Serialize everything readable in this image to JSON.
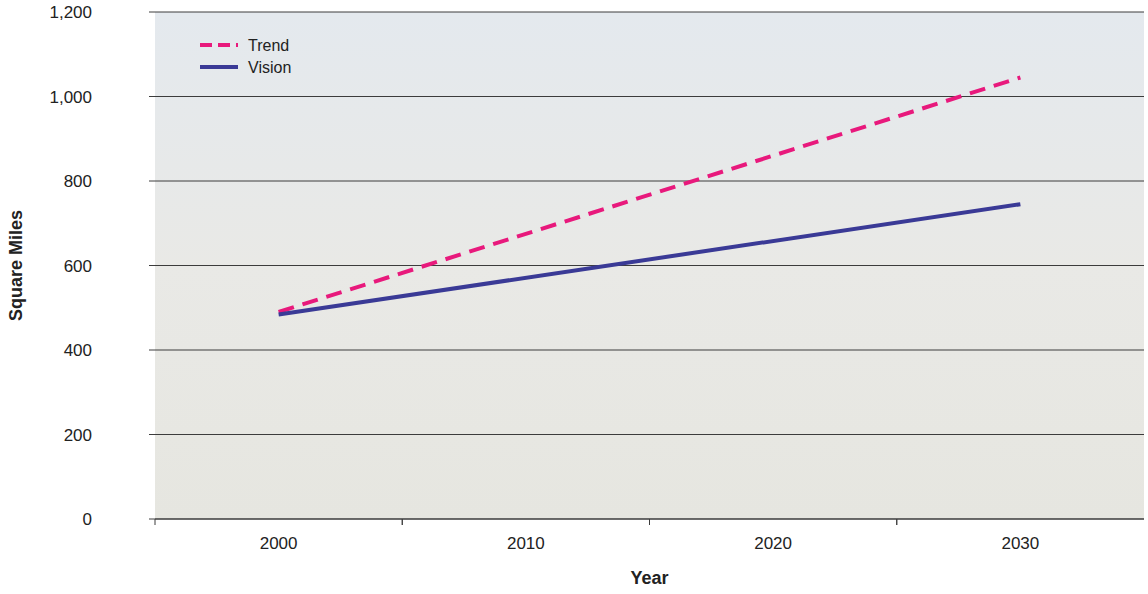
{
  "chart_data": {
    "type": "line",
    "x_label": "Year",
    "y_label": "Square Miles",
    "x": [
      2000,
      2030
    ],
    "series": [
      {
        "name": "Trend",
        "color": "#e8197c",
        "line_style": "dashed",
        "values": [
          490,
          1045
        ]
      },
      {
        "name": "Vision",
        "color": "#3a3a96",
        "line_style": "solid",
        "values": [
          484,
          745
        ]
      }
    ],
    "xlim": [
      1995,
      2035
    ],
    "xticks": [
      2000,
      2010,
      2020,
      2030
    ],
    "ylim": [
      0,
      1200
    ],
    "yticks": [
      0,
      200,
      400,
      600,
      800,
      {
        "value": 1000,
        "label": "1,000"
      },
      {
        "value": 1200,
        "label": "1,200"
      }
    ],
    "grid": true,
    "legend": "upper left"
  }
}
